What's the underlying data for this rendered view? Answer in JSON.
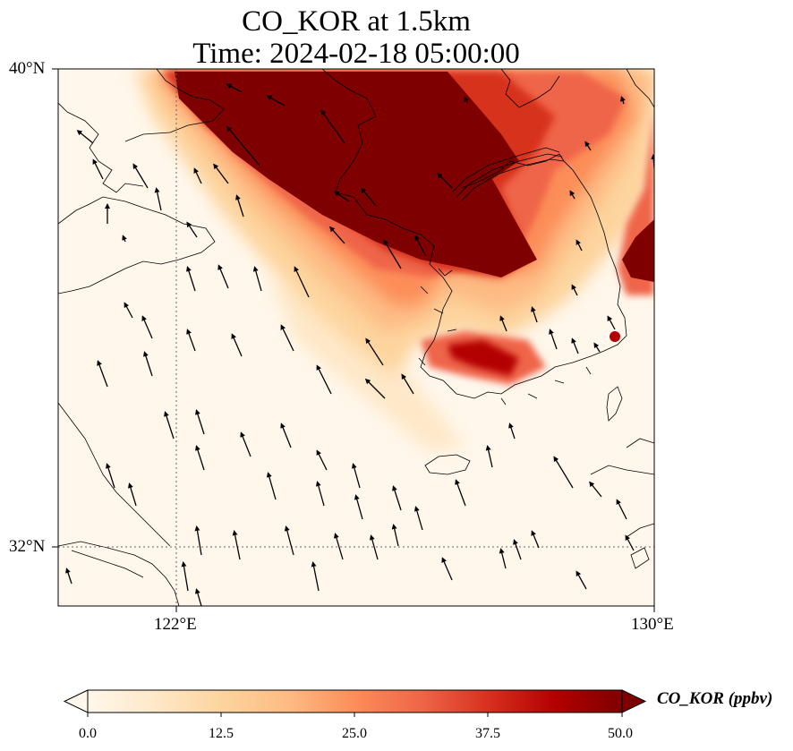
{
  "title": {
    "line1": "CO_KOR at 1.5km",
    "line2": "Time: 2024-02-18 05:00:00"
  },
  "map": {
    "lat_labels": [
      "40°N",
      "32°N"
    ],
    "lon_labels": [
      "122°E",
      "130°E"
    ],
    "extent": {
      "lon_min": 120,
      "lon_max": 130,
      "lat_min": 31,
      "lat_max": 40
    },
    "gridlines": {
      "lon": [
        122
      ],
      "lat": [
        32
      ],
      "style": "dotted"
    },
    "wind_vectors": "black arrows, predominantly from the south-southeast",
    "field": "CO_KOR concentration at 1.5km"
  },
  "colorbar": {
    "label": "CO_KOR (ppbv)",
    "ticks": [
      "0.0",
      "12.5",
      "25.0",
      "37.5",
      "50.0"
    ],
    "min": 0,
    "max": 50,
    "colormap": "OrRd",
    "extend": "both",
    "colors": [
      "#fff7ec",
      "#fee8c8",
      "#fdd49e",
      "#fdbb84",
      "#fc8d59",
      "#ef6548",
      "#d7301f",
      "#b30000",
      "#7f0000"
    ]
  }
}
